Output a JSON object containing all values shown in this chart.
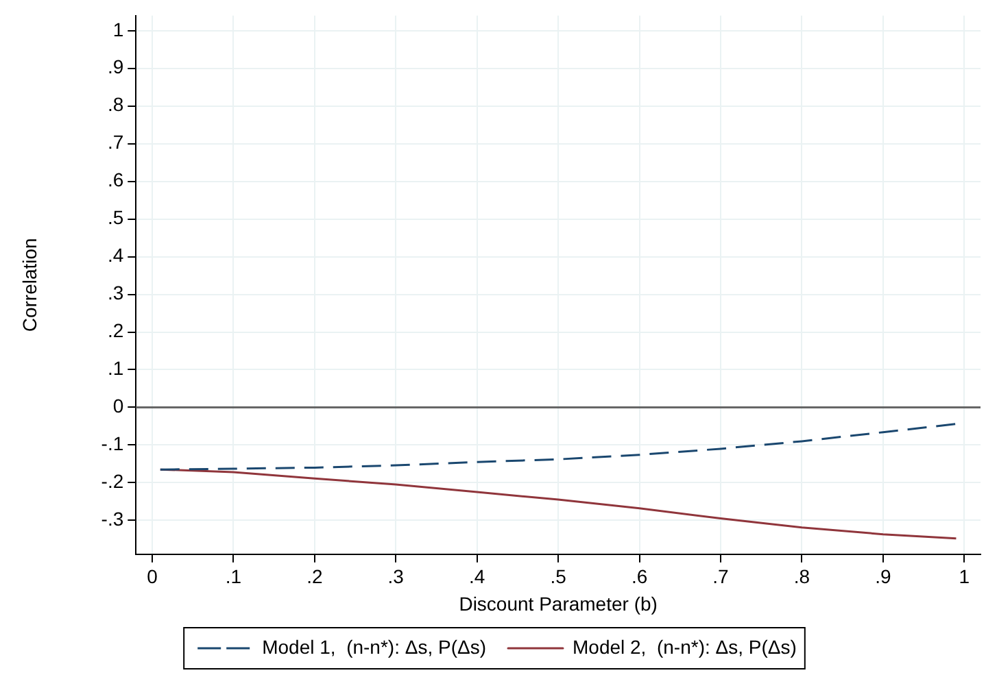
{
  "chart_data": {
    "type": "line",
    "xlabel": "Discount Parameter (b)",
    "ylabel": "Correlation",
    "xlim": [
      -0.02,
      1.02
    ],
    "ylim": [
      -0.39,
      1.04
    ],
    "xticks": [
      0,
      {
        "value": 0.1,
        "label": ".1"
      },
      {
        "value": 0.2,
        "label": ".2"
      },
      {
        "value": 0.3,
        "label": ".3"
      },
      {
        "value": 0.4,
        "label": ".4"
      },
      {
        "value": 0.5,
        "label": ".5"
      },
      {
        "value": 0.6,
        "label": ".6"
      },
      {
        "value": 0.7,
        "label": ".7"
      },
      {
        "value": 0.8,
        "label": ".8"
      },
      {
        "value": 0.9,
        "label": ".9"
      },
      1
    ],
    "yticks": [
      {
        "value": -0.3,
        "label": "-.3"
      },
      {
        "value": -0.2,
        "label": "-.2"
      },
      {
        "value": -0.1,
        "label": "-.1"
      },
      0,
      {
        "value": 0.1,
        "label": ".1"
      },
      {
        "value": 0.2,
        "label": ".2"
      },
      {
        "value": 0.3,
        "label": ".3"
      },
      {
        "value": 0.4,
        "label": ".4"
      },
      {
        "value": 0.5,
        "label": ".5"
      },
      {
        "value": 0.6,
        "label": ".6"
      },
      {
        "value": 0.7,
        "label": ".7"
      },
      {
        "value": 0.8,
        "label": ".8"
      },
      {
        "value": 0.9,
        "label": ".9"
      },
      1
    ],
    "x": [
      0.01,
      0.1,
      0.2,
      0.3,
      0.4,
      0.5,
      0.6,
      0.7,
      0.8,
      0.9,
      0.99
    ],
    "series": [
      {
        "name": "Model 1,  (n-n*): Δs, P(Δs)",
        "color": "#1a476f",
        "line_style": "dashed",
        "values": [
          -0.165,
          -0.163,
          -0.16,
          -0.154,
          -0.145,
          -0.138,
          -0.126,
          -0.11,
          -0.09,
          -0.066,
          -0.044
        ]
      },
      {
        "name": "Model 2,  (n-n*): Δs, P(Δs)",
        "color": "#90353b",
        "line_style": "solid",
        "values": [
          -0.165,
          -0.172,
          -0.189,
          -0.205,
          -0.225,
          -0.245,
          -0.268,
          -0.295,
          -0.319,
          -0.337,
          -0.348
        ]
      }
    ],
    "ref_lines": [
      {
        "axis": "y",
        "value": 0,
        "color": "#666666"
      }
    ],
    "grid": true,
    "legend": "bottom",
    "marker": "none"
  }
}
